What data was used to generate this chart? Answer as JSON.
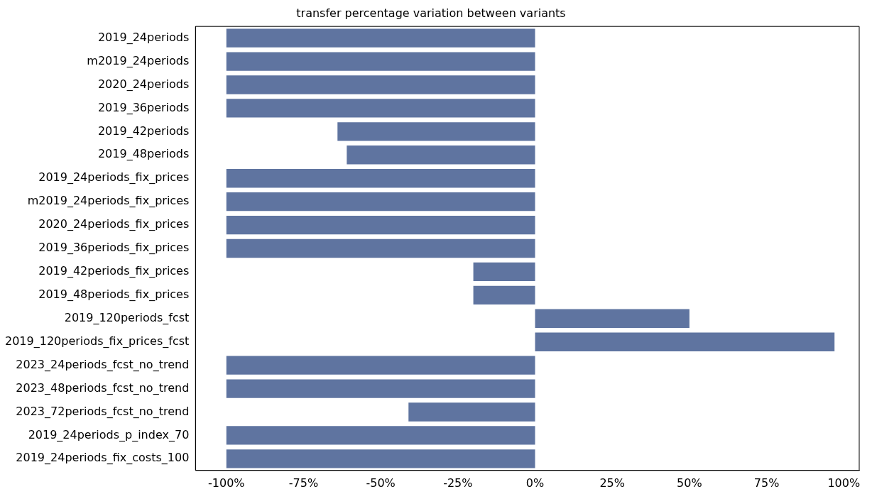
{
  "chart_data": {
    "type": "bar",
    "orientation": "horizontal",
    "title": "transfer percentage variation between variants",
    "categories": [
      "2019_24periods",
      "m2019_24periods",
      "2020_24periods",
      "2019_36periods",
      "2019_42periods",
      "2019_48periods",
      "2019_24periods_fix_prices",
      "m2019_24periods_fix_prices",
      "2020_24periods_fix_prices",
      "2019_36periods_fix_prices",
      "2019_42periods_fix_prices",
      "2019_48periods_fix_prices",
      "2019_120periods_fcst",
      "2019_120periods_fix_prices_fcst",
      "2023_24periods_fcst_no_trend",
      "2023_48periods_fcst_no_trend",
      "2023_72periods_fcst_no_trend",
      "2019_24periods_p_index_70",
      "2019_24periods_fix_costs_100"
    ],
    "values": [
      -100,
      -100,
      -100,
      -100,
      -64,
      -61,
      -100,
      -100,
      -100,
      -100,
      -20,
      -20,
      50,
      97,
      -100,
      -100,
      -41,
      -100,
      -100
    ],
    "color": "#5f74a0",
    "xlim": [
      -110,
      105
    ],
    "xticks": [
      {
        "value": -100,
        "label": "-100%"
      },
      {
        "value": -75,
        "label": "-75%"
      },
      {
        "value": -50,
        "label": "-50%"
      },
      {
        "value": -25,
        "label": "-25%"
      },
      {
        "value": 0,
        "label": "0%"
      },
      {
        "value": 25,
        "label": "25%"
      },
      {
        "value": 50,
        "label": "50%"
      },
      {
        "value": 75,
        "label": "75%"
      },
      {
        "value": 100,
        "label": "100%"
      }
    ],
    "grid": false,
    "legend": false
  }
}
